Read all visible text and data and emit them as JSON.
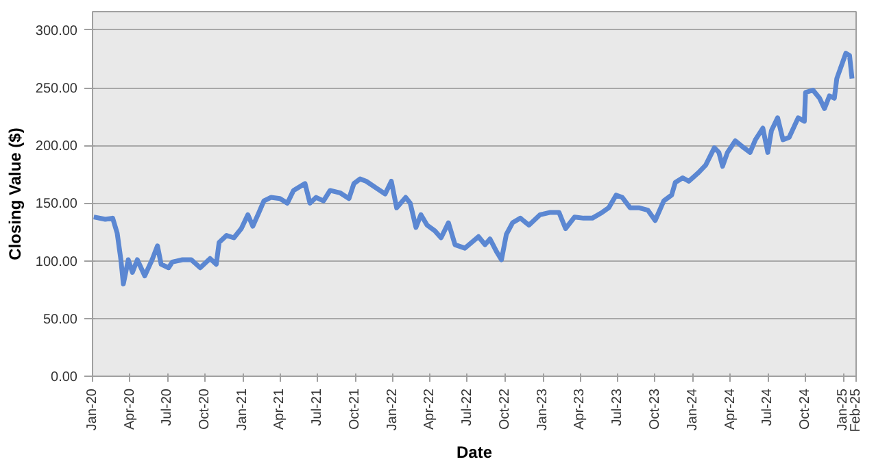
{
  "chart_data": {
    "type": "line",
    "xlabel": "Date",
    "ylabel": "Closing Value ($)",
    "x": [
      "2020-01-04",
      "2020-02-01",
      "2020-02-19",
      "2020-03-01",
      "2020-03-10",
      "2020-03-16",
      "2020-03-28",
      "2020-04-07",
      "2020-04-19",
      "2020-05-07",
      "2020-05-25",
      "2020-06-07",
      "2020-06-16",
      "2020-07-04",
      "2020-07-13",
      "2020-08-07",
      "2020-08-28",
      "2020-09-19",
      "2020-10-13",
      "2020-10-28",
      "2020-11-04",
      "2020-11-22",
      "2020-12-10",
      "2020-12-28",
      "2021-01-13",
      "2021-01-25",
      "2021-02-09",
      "2021-02-21",
      "2021-03-10",
      "2021-04-01",
      "2021-04-19",
      "2021-05-04",
      "2021-06-01",
      "2021-06-13",
      "2021-06-28",
      "2021-07-16",
      "2021-08-01",
      "2021-08-25",
      "2021-09-16",
      "2021-09-28",
      "2021-10-13",
      "2021-10-28",
      "2021-11-22",
      "2021-12-13",
      "2021-12-28",
      "2022-01-10",
      "2022-02-01",
      "2022-02-12",
      "2022-02-26",
      "2022-03-10",
      "2022-03-25",
      "2022-04-13",
      "2022-04-28",
      "2022-05-16",
      "2022-06-01",
      "2022-06-25",
      "2022-07-28",
      "2022-08-13",
      "2022-08-25",
      "2022-09-10",
      "2022-09-22",
      "2022-10-04",
      "2022-10-19",
      "2022-11-07",
      "2022-11-28",
      "2022-12-25",
      "2023-01-19",
      "2023-02-09",
      "2023-02-25",
      "2023-03-19",
      "2023-04-10",
      "2023-05-01",
      "2023-05-25",
      "2023-06-10",
      "2023-06-28",
      "2023-07-13",
      "2023-08-01",
      "2023-08-22",
      "2023-09-13",
      "2023-10-01",
      "2023-10-22",
      "2023-11-10",
      "2023-11-19",
      "2023-12-07",
      "2023-12-22",
      "2024-01-13",
      "2024-02-01",
      "2024-02-22",
      "2024-03-04",
      "2024-03-13",
      "2024-03-25",
      "2024-04-13",
      "2024-05-04",
      "2024-05-19",
      "2024-06-01",
      "2024-06-19",
      "2024-07-01",
      "2024-07-10",
      "2024-07-25",
      "2024-08-07",
      "2024-08-22",
      "2024-09-13",
      "2024-09-28",
      "2024-10-01",
      "2024-10-19",
      "2024-11-04",
      "2024-11-16",
      "2024-11-28",
      "2024-12-10",
      "2024-12-16",
      "2024-12-25",
      "2025-01-07",
      "2025-01-16",
      "2025-01-22"
    ],
    "series": [
      {
        "color": "#5b87d2",
        "values": [
          138,
          136,
          137,
          124,
          101,
          80,
          101,
          90,
          101,
          87,
          101,
          113,
          97,
          94,
          99,
          101,
          101,
          94,
          102,
          97,
          116,
          122,
          120,
          128,
          140,
          130,
          142,
          152,
          155,
          154,
          150,
          161,
          167,
          150,
          155,
          152,
          161,
          159,
          154,
          167,
          171,
          169,
          163,
          158,
          169,
          146,
          155,
          150,
          129,
          140,
          131,
          126,
          120,
          133,
          114,
          111,
          121,
          114,
          119,
          108,
          101,
          123,
          133,
          137,
          131,
          140,
          142,
          142,
          128,
          138,
          137,
          137,
          142,
          146,
          157,
          155,
          146,
          146,
          144,
          135,
          152,
          157,
          168,
          172,
          169,
          176,
          183,
          198,
          194,
          182,
          194,
          204,
          198,
          194,
          205,
          215,
          194,
          213,
          224,
          205,
          207,
          224,
          221,
          246,
          248,
          241,
          232,
          243,
          241,
          258,
          267,
          280,
          278,
          258
        ]
      }
    ],
    "xlim": [
      "2020-01-01",
      "2025-02-01"
    ],
    "xticks": [
      {
        "value": "2020-01-01",
        "label": "Jan-20"
      },
      {
        "value": "2020-04-01",
        "label": "Apr-20"
      },
      {
        "value": "2020-07-01",
        "label": "Jul-20"
      },
      {
        "value": "2020-10-01",
        "label": "Oct-20"
      },
      {
        "value": "2021-01-01",
        "label": "Jan-21"
      },
      {
        "value": "2021-04-01",
        "label": "Apr-21"
      },
      {
        "value": "2021-07-01",
        "label": "Jul-21"
      },
      {
        "value": "2021-10-01",
        "label": "Oct-21"
      },
      {
        "value": "2022-01-01",
        "label": "Jan-22"
      },
      {
        "value": "2022-04-01",
        "label": "Apr-22"
      },
      {
        "value": "2022-07-01",
        "label": "Jul-22"
      },
      {
        "value": "2022-10-01",
        "label": "Oct-22"
      },
      {
        "value": "2023-01-01",
        "label": "Jan-23"
      },
      {
        "value": "2023-04-01",
        "label": "Apr-23"
      },
      {
        "value": "2023-07-01",
        "label": "Jul-23"
      },
      {
        "value": "2023-10-01",
        "label": "Oct-23"
      },
      {
        "value": "2024-01-01",
        "label": "Jan-24"
      },
      {
        "value": "2024-04-01",
        "label": "Apr-24"
      },
      {
        "value": "2024-07-01",
        "label": "Jul-24"
      },
      {
        "value": "2024-10-01",
        "label": "Oct-24"
      },
      {
        "value": "2025-01-01",
        "label": "Jan-25"
      },
      {
        "value": "2025-02-01",
        "label": "Feb-25"
      }
    ],
    "ylim": [
      0,
      316
    ],
    "yticks": [
      {
        "value": 0,
        "label": "0.00"
      },
      {
        "value": 50,
        "label": "50.00"
      },
      {
        "value": 100,
        "label": "100.00"
      },
      {
        "value": 150,
        "label": "150.00"
      },
      {
        "value": 200,
        "label": "200.00"
      },
      {
        "value": 250,
        "label": "250.00"
      },
      {
        "value": 300,
        "label": "300.00"
      }
    ],
    "grid": "y",
    "line_style": "solid"
  }
}
